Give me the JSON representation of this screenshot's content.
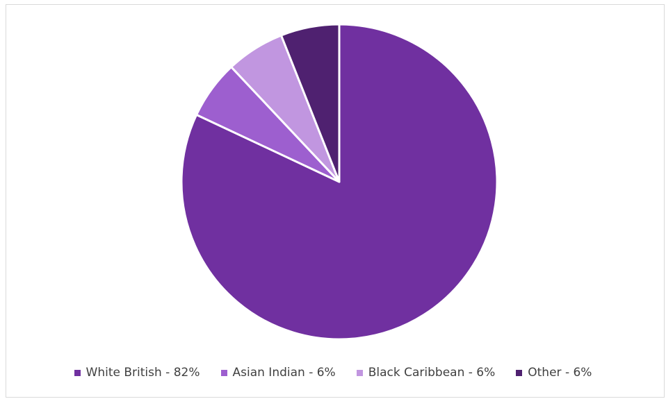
{
  "chart_data": {
    "type": "pie",
    "title": "",
    "categories": [
      "White British",
      "Asian Indian",
      "Black Caribbean",
      "Other"
    ],
    "values": [
      82,
      6,
      6,
      6
    ],
    "unit": "%",
    "legend_position": "bottom",
    "slices": [
      {
        "label": "White British - 82%",
        "name": "White British",
        "value": 82,
        "color": "#7030a0"
      },
      {
        "label": "Asian Indian - 6%",
        "name": "Asian Indian",
        "value": 6,
        "color": "#9d5fcf"
      },
      {
        "label": "Black Caribbean - 6%",
        "name": "Black Caribbean",
        "value": 6,
        "color": "#c196e0"
      },
      {
        "label": "Other - 6%",
        "name": "Other",
        "value": 6,
        "color": "#4f2170"
      }
    ]
  }
}
